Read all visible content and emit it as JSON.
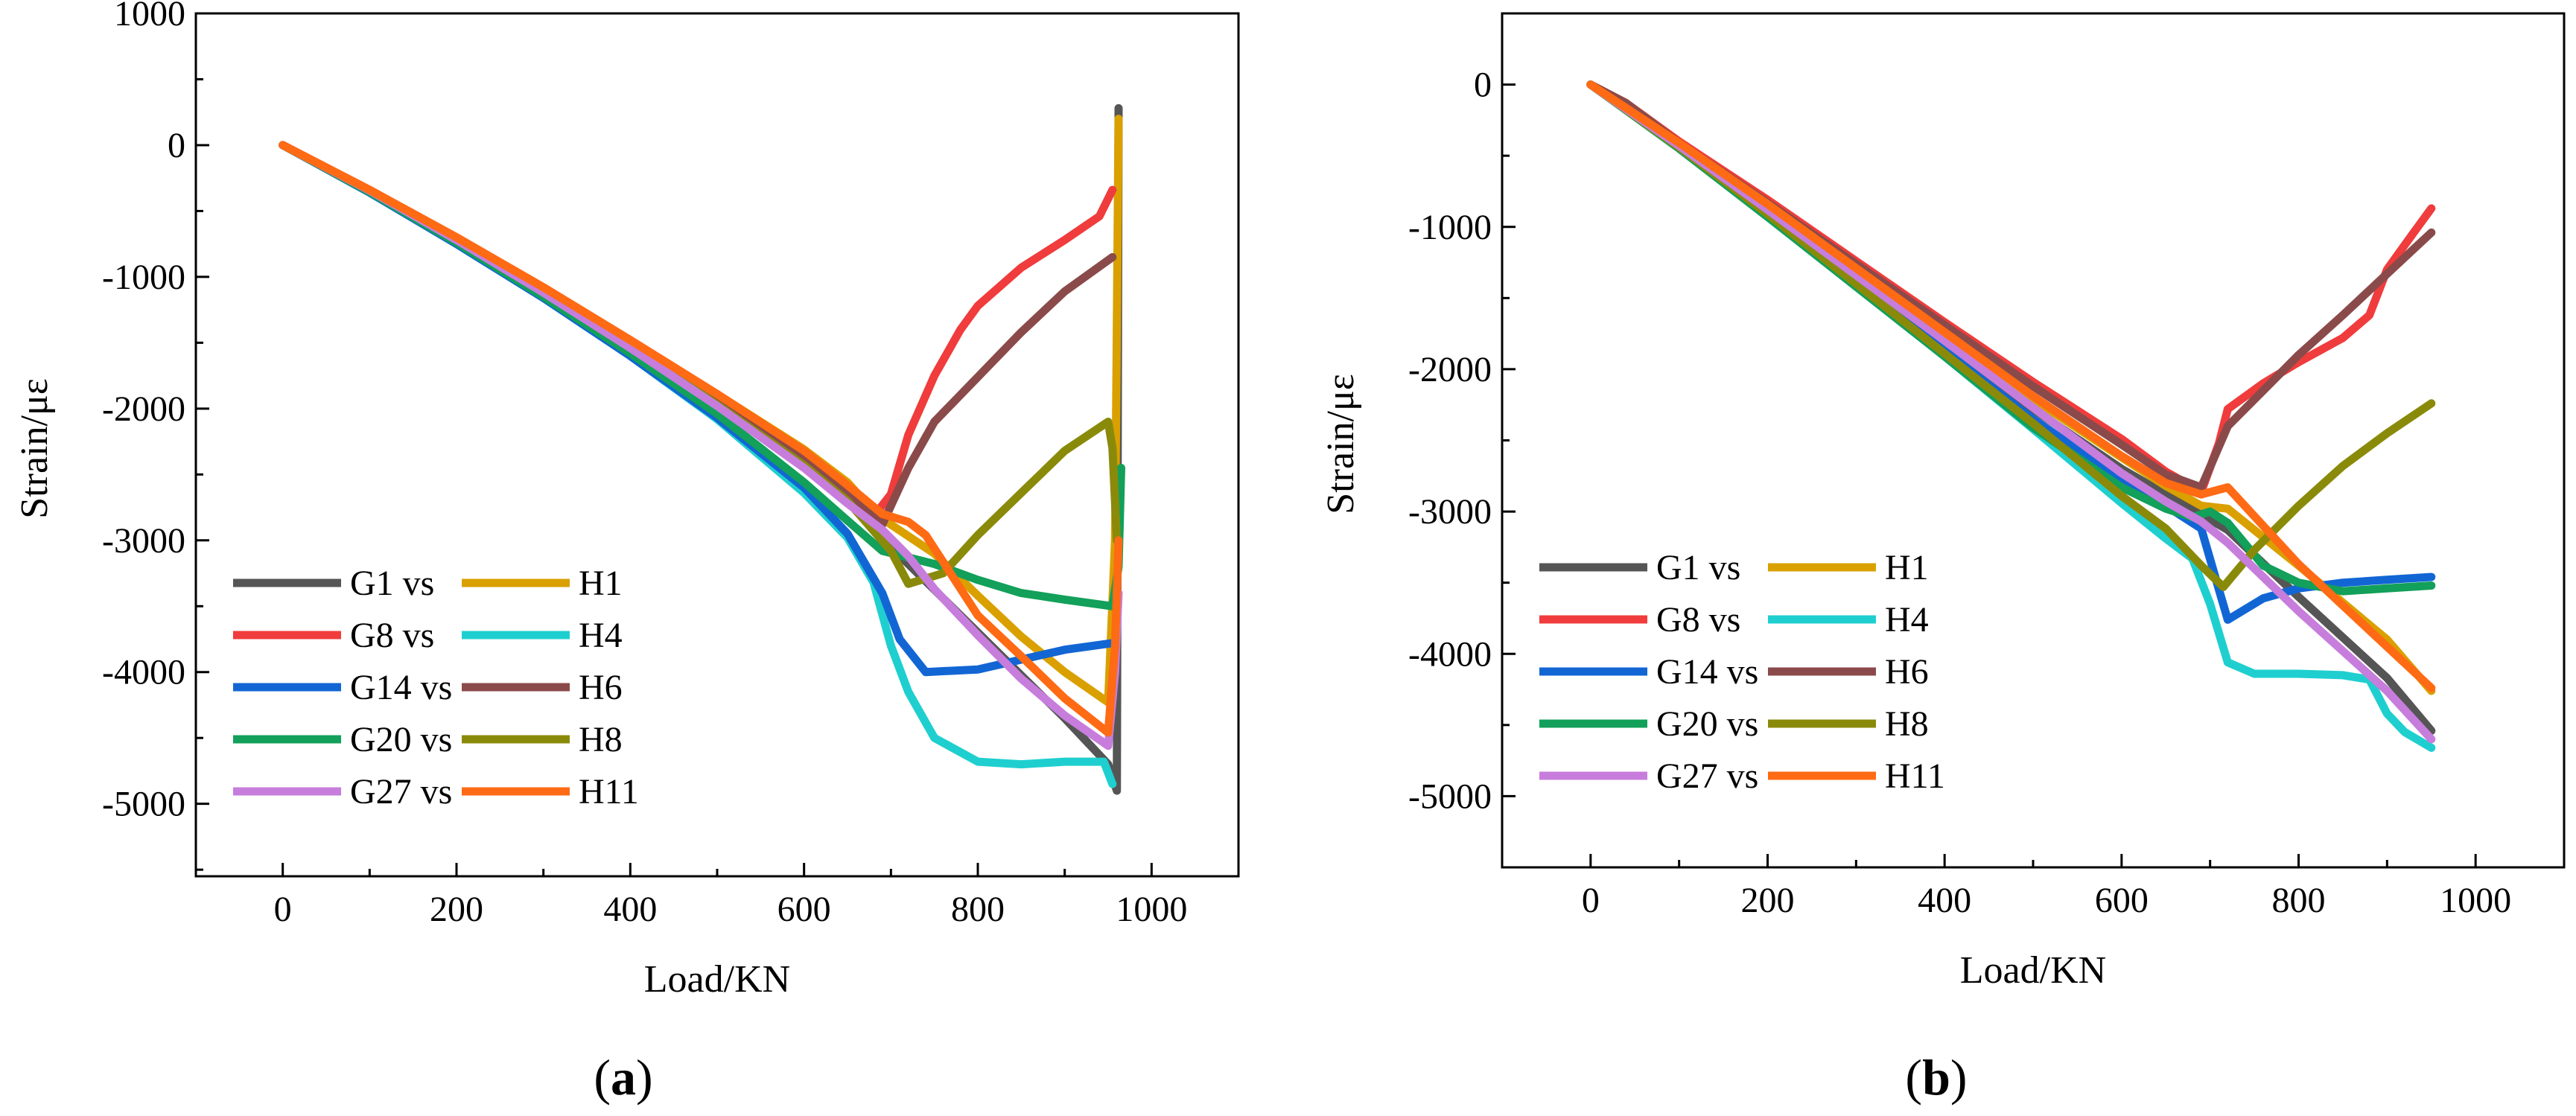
{
  "chart_data": [
    {
      "type": "line",
      "panel": "a",
      "panel_label": "a",
      "xlabel": "Load/KN",
      "ylabel": "Strain/με",
      "xlim": [
        -100,
        1100
      ],
      "ylim": [
        -5550,
        1000
      ],
      "xticks": [
        0,
        200,
        400,
        600,
        800,
        1000
      ],
      "yticks": [
        1000,
        0,
        -1000,
        -2000,
        -3000,
        -4000,
        -5000
      ],
      "legend": {
        "placement": "bottom-left",
        "rows": [
          {
            "left": "G1  vs",
            "right": "H1"
          },
          {
            "left": "G8  vs",
            "right": "H4"
          },
          {
            "left": "G14 vs",
            "right": "H6"
          },
          {
            "left": "G20 vs",
            "right": "H8"
          },
          {
            "left": "G27 vs",
            "right": "H11"
          }
        ]
      },
      "series": [
        {
          "name": "G1",
          "color": "#555555",
          "x": [
            0,
            100,
            200,
            300,
            400,
            500,
            600,
            650,
            680,
            700,
            800,
            900,
            950,
            960,
            962
          ],
          "y": [
            0,
            -350,
            -730,
            -1120,
            -1530,
            -1960,
            -2420,
            -2660,
            -2860,
            -3050,
            -3700,
            -4350,
            -4700,
            -4900,
            280
          ]
        },
        {
          "name": "H1",
          "color": "#d9a000",
          "x": [
            0,
            100,
            200,
            300,
            400,
            500,
            600,
            650,
            680,
            700,
            750,
            800,
            850,
            900,
            950,
            958,
            962
          ],
          "y": [
            0,
            -340,
            -700,
            -1080,
            -1480,
            -1890,
            -2310,
            -2560,
            -2780,
            -2880,
            -3100,
            -3420,
            -3730,
            -4000,
            -4230,
            -3000,
            200
          ]
        },
        {
          "name": "G8",
          "color": "#f03c3c",
          "x": [
            0,
            100,
            200,
            300,
            400,
            500,
            600,
            650,
            680,
            700,
            720,
            750,
            780,
            800,
            850,
            900,
            940,
            955
          ],
          "y": [
            0,
            -340,
            -700,
            -1080,
            -1480,
            -1890,
            -2330,
            -2610,
            -2820,
            -2650,
            -2200,
            -1750,
            -1400,
            -1220,
            -930,
            -720,
            -540,
            -340
          ]
        },
        {
          "name": "H4",
          "color": "#1fcfcf",
          "x": [
            0,
            100,
            200,
            300,
            400,
            500,
            600,
            650,
            680,
            700,
            720,
            750,
            800,
            850,
            900,
            945,
            955
          ],
          "y": [
            0,
            -360,
            -750,
            -1160,
            -1600,
            -2080,
            -2640,
            -2980,
            -3320,
            -3800,
            -4150,
            -4500,
            -4680,
            -4700,
            -4680,
            -4680,
            -4850
          ]
        },
        {
          "name": "G14",
          "color": "#1266d4",
          "x": [
            0,
            100,
            200,
            300,
            400,
            500,
            600,
            650,
            690,
            710,
            740,
            800,
            900,
            955
          ],
          "y": [
            0,
            -360,
            -750,
            -1160,
            -1600,
            -2070,
            -2600,
            -2950,
            -3400,
            -3750,
            -4000,
            -3980,
            -3830,
            -3780
          ]
        },
        {
          "name": "H6",
          "color": "#8b4a4a",
          "x": [
            0,
            100,
            200,
            300,
            400,
            500,
            600,
            650,
            690,
            720,
            750,
            800,
            850,
            900,
            955
          ],
          "y": [
            0,
            -345,
            -710,
            -1100,
            -1510,
            -1930,
            -2380,
            -2650,
            -2880,
            -2450,
            -2100,
            -1760,
            -1420,
            -1110,
            -850
          ]
        },
        {
          "name": "G20",
          "color": "#12a05a",
          "x": [
            0,
            100,
            200,
            300,
            400,
            500,
            600,
            650,
            690,
            750,
            800,
            850,
            900,
            955,
            962,
            965
          ],
          "y": [
            0,
            -355,
            -740,
            -1150,
            -1580,
            -2040,
            -2560,
            -2850,
            -3080,
            -3180,
            -3300,
            -3400,
            -3450,
            -3500,
            -3200,
            -2450
          ]
        },
        {
          "name": "H8",
          "color": "#8a8a0a",
          "x": [
            0,
            100,
            200,
            300,
            400,
            500,
            600,
            650,
            700,
            720,
            760,
            800,
            850,
            900,
            950,
            955,
            960
          ],
          "y": [
            0,
            -345,
            -715,
            -1110,
            -1530,
            -1970,
            -2430,
            -2700,
            -3080,
            -3330,
            -3250,
            -2960,
            -2640,
            -2320,
            -2100,
            -2300,
            -3000
          ]
        },
        {
          "name": "G27",
          "color": "#c77ddc",
          "x": [
            0,
            100,
            200,
            300,
            400,
            500,
            600,
            650,
            690,
            720,
            750,
            800,
            850,
            900,
            950,
            958,
            962
          ],
          "y": [
            0,
            -345,
            -720,
            -1120,
            -1540,
            -1980,
            -2450,
            -2720,
            -2920,
            -3120,
            -3370,
            -3720,
            -4050,
            -4330,
            -4560,
            -4000,
            -3400
          ]
        },
        {
          "name": "H11",
          "color": "#ff6a14",
          "x": [
            0,
            100,
            200,
            300,
            400,
            500,
            600,
            650,
            690,
            720,
            740,
            800,
            850,
            900,
            950,
            958,
            962
          ],
          "y": [
            0,
            -340,
            -700,
            -1080,
            -1480,
            -1890,
            -2320,
            -2580,
            -2800,
            -2860,
            -2960,
            -3570,
            -3880,
            -4200,
            -4460,
            -3800,
            -3000
          ]
        }
      ]
    },
    {
      "type": "line",
      "panel": "b",
      "panel_label": "b",
      "xlabel": "Load/KN",
      "ylabel": "Strain/με",
      "xlim": [
        -100,
        1100
      ],
      "ylim": [
        -5500,
        500
      ],
      "xticks": [
        0,
        200,
        400,
        600,
        800,
        1000
      ],
      "yticks": [
        0,
        -1000,
        -2000,
        -3000,
        -4000,
        -5000
      ],
      "legend": {
        "placement": "bottom-left",
        "rows": [
          {
            "left": "G1  vs",
            "right": "H1"
          },
          {
            "left": "G8  vs",
            "right": "H4"
          },
          {
            "left": "G14 vs",
            "right": "H6"
          },
          {
            "left": "G20 vs",
            "right": "H8"
          },
          {
            "left": "G27 vs",
            "right": "H11"
          }
        ]
      },
      "series": [
        {
          "name": "G1",
          "color": "#555555",
          "x": [
            0,
            100,
            200,
            300,
            400,
            500,
            600,
            650,
            690,
            720,
            800,
            900,
            950
          ],
          "y": [
            0,
            -430,
            -890,
            -1360,
            -1820,
            -2280,
            -2700,
            -2880,
            -3020,
            -3130,
            -3600,
            -4170,
            -4540
          ]
        },
        {
          "name": "H1",
          "color": "#d9a000",
          "x": [
            0,
            100,
            200,
            300,
            400,
            500,
            600,
            650,
            690,
            720,
            800,
            900,
            950
          ],
          "y": [
            0,
            -420,
            -860,
            -1310,
            -1760,
            -2210,
            -2620,
            -2820,
            -2960,
            -2980,
            -3380,
            -3900,
            -4260
          ]
        },
        {
          "name": "G8",
          "color": "#f03c3c",
          "x": [
            0,
            40,
            100,
            200,
            300,
            400,
            500,
            600,
            650,
            690,
            710,
            720,
            760,
            800,
            850,
            880,
            900,
            930,
            950
          ],
          "y": [
            0,
            -130,
            -400,
            -810,
            -1240,
            -1670,
            -2090,
            -2490,
            -2720,
            -2860,
            -2520,
            -2280,
            -2100,
            -1950,
            -1780,
            -1620,
            -1300,
            -1040,
            -870
          ]
        },
        {
          "name": "H4",
          "color": "#1fcfcf",
          "x": [
            0,
            100,
            200,
            300,
            400,
            500,
            600,
            650,
            680,
            700,
            720,
            750,
            800,
            850,
            880,
            900,
            920,
            950
          ],
          "y": [
            0,
            -440,
            -920,
            -1410,
            -1910,
            -2420,
            -2940,
            -3190,
            -3330,
            -3650,
            -4060,
            -4140,
            -4140,
            -4150,
            -4180,
            -4420,
            -4550,
            -4660
          ]
        },
        {
          "name": "G14",
          "color": "#1266d4",
          "x": [
            0,
            100,
            200,
            300,
            400,
            500,
            600,
            650,
            690,
            710,
            720,
            760,
            800,
            850,
            900,
            950
          ],
          "y": [
            0,
            -440,
            -910,
            -1390,
            -1870,
            -2350,
            -2780,
            -2960,
            -3120,
            -3550,
            -3760,
            -3610,
            -3540,
            -3500,
            -3480,
            -3460
          ]
        },
        {
          "name": "H6",
          "color": "#8b4a4a",
          "x": [
            0,
            40,
            100,
            200,
            300,
            400,
            500,
            600,
            650,
            690,
            720,
            760,
            800,
            850,
            900,
            950
          ],
          "y": [
            0,
            -130,
            -410,
            -830,
            -1260,
            -1690,
            -2120,
            -2530,
            -2740,
            -2830,
            -2400,
            -2150,
            -1900,
            -1620,
            -1330,
            -1040
          ]
        },
        {
          "name": "G20",
          "color": "#12a05a",
          "x": [
            0,
            100,
            200,
            300,
            400,
            500,
            600,
            650,
            680,
            700,
            720,
            760,
            800,
            850,
            900,
            950
          ],
          "y": [
            0,
            -450,
            -930,
            -1420,
            -1910,
            -2410,
            -2830,
            -2980,
            -3040,
            -3000,
            -3080,
            -3380,
            -3500,
            -3560,
            -3540,
            -3520
          ]
        },
        {
          "name": "H8",
          "color": "#8a8a0a",
          "x": [
            0,
            100,
            200,
            300,
            400,
            500,
            600,
            650,
            690,
            715,
            750,
            800,
            850,
            900,
            950
          ],
          "y": [
            0,
            -440,
            -910,
            -1400,
            -1890,
            -2380,
            -2890,
            -3120,
            -3380,
            -3530,
            -3270,
            -2960,
            -2680,
            -2450,
            -2240
          ]
        },
        {
          "name": "G27",
          "color": "#c77ddc",
          "x": [
            0,
            100,
            200,
            300,
            400,
            500,
            600,
            650,
            690,
            720,
            800,
            900,
            950
          ],
          "y": [
            0,
            -430,
            -880,
            -1340,
            -1800,
            -2270,
            -2730,
            -2930,
            -3070,
            -3220,
            -3700,
            -4260,
            -4600
          ]
        },
        {
          "name": "H11",
          "color": "#ff6a14",
          "x": [
            0,
            100,
            200,
            300,
            400,
            500,
            600,
            650,
            690,
            720,
            800,
            900,
            950
          ],
          "y": [
            0,
            -410,
            -840,
            -1290,
            -1740,
            -2190,
            -2610,
            -2800,
            -2880,
            -2830,
            -3370,
            -3950,
            -4240
          ]
        }
      ]
    }
  ]
}
